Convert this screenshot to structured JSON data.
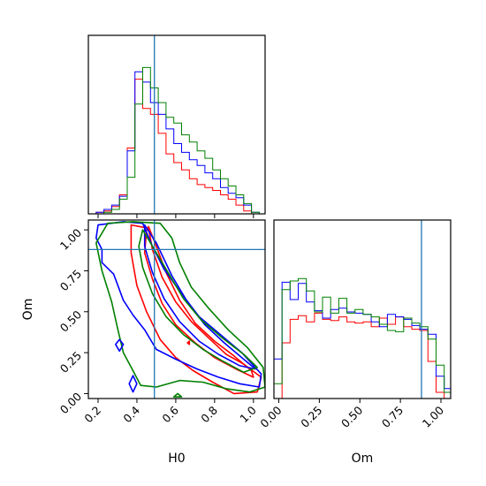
{
  "chart_data": {
    "type": "corner",
    "parameters": [
      "H0",
      "Om"
    ],
    "xlabel_bottom_left": "H0",
    "xlabel_bottom_right": "Om",
    "ylabel_left": "Om",
    "truth": {
      "H0": 0.49,
      "Om": 0.88
    },
    "ranges": {
      "H0": [
        0.15,
        1.06
      ],
      "Om": [
        -0.03,
        1.06
      ]
    },
    "ticks": {
      "H0": [
        "0.2",
        "0.4",
        "0.6",
        "0.8",
        "1.0"
      ],
      "Om": [
        "0.00",
        "0.25",
        "0.50",
        "0.75",
        "1.00"
      ]
    },
    "colors": {
      "series_1": "#ff0000",
      "series_2": "#0000ff",
      "series_3": "#008000",
      "truth": "#1f77b4"
    },
    "h0_hist_bins": [
      0.15,
      0.19,
      0.23,
      0.27,
      0.31,
      0.35,
      0.39,
      0.43,
      0.47,
      0.51,
      0.55,
      0.59,
      0.63,
      0.67,
      0.71,
      0.75,
      0.79,
      0.83,
      0.87,
      0.91,
      0.95,
      0.99,
      1.03
    ],
    "h0_hist": [
      {
        "color": "red",
        "values": [
          0,
          0.01,
          0.02,
          0.05,
          0.13,
          0.45,
          0.92,
          0.72,
          0.68,
          0.55,
          0.41,
          0.35,
          0.3,
          0.24,
          0.2,
          0.18,
          0.16,
          0.13,
          0.1,
          0.06,
          0.02,
          0
        ]
      },
      {
        "color": "blue",
        "values": [
          0,
          0.01,
          0.03,
          0.06,
          0.12,
          0.43,
          0.97,
          0.9,
          0.76,
          0.68,
          0.58,
          0.48,
          0.42,
          0.37,
          0.33,
          0.28,
          0.24,
          0.18,
          0.14,
          0.11,
          0.06,
          0.01
        ]
      },
      {
        "color": "green",
        "values": [
          0,
          0,
          0.01,
          0.03,
          0.1,
          0.25,
          0.75,
          1.0,
          0.86,
          0.76,
          0.66,
          0.62,
          0.54,
          0.49,
          0.43,
          0.38,
          0.3,
          0.24,
          0.19,
          0.13,
          0.07,
          0.01
        ]
      }
    ],
    "om_hist_bins": [
      -0.03,
      0.02,
      0.07,
      0.12,
      0.17,
      0.22,
      0.27,
      0.32,
      0.37,
      0.42,
      0.47,
      0.52,
      0.57,
      0.62,
      0.67,
      0.72,
      0.77,
      0.82,
      0.87,
      0.92,
      0.97,
      1.02,
      1.06
    ],
    "om_hist": [
      {
        "color": "red",
        "values": [
          0,
          0.45,
          0.64,
          0.67,
          0.62,
          0.69,
          0.64,
          0.63,
          0.66,
          0.62,
          0.61,
          0.62,
          0.58,
          0.65,
          0.6,
          0.66,
          0.58,
          0.56,
          0.55,
          0.3,
          0.05,
          0
        ]
      },
      {
        "color": "blue",
        "values": [
          0.32,
          0.94,
          0.8,
          0.93,
          0.78,
          0.71,
          0.65,
          0.72,
          0.73,
          0.7,
          0.69,
          0.68,
          0.62,
          0.58,
          0.68,
          0.66,
          0.64,
          0.59,
          0.56,
          0.52,
          0.18,
          0.08
        ]
      },
      {
        "color": "green",
        "values": [
          0.12,
          0.88,
          0.95,
          0.97,
          0.87,
          0.7,
          0.82,
          0.69,
          0.81,
          0.69,
          0.72,
          0.68,
          0.66,
          0.6,
          0.55,
          0.54,
          0.65,
          0.61,
          0.58,
          0.48,
          0.27,
          0.05
        ]
      }
    ],
    "contours": [
      {
        "color": "red",
        "level": "inner",
        "points": [
          [
            0.46,
            1.02
          ],
          [
            0.5,
            0.9
          ],
          [
            0.55,
            0.74
          ],
          [
            0.62,
            0.57
          ],
          [
            0.7,
            0.43
          ],
          [
            0.8,
            0.32
          ],
          [
            0.9,
            0.23
          ],
          [
            0.99,
            0.14
          ],
          [
            1.0,
            0.1
          ],
          [
            0.91,
            0.15
          ],
          [
            0.8,
            0.22
          ],
          [
            0.7,
            0.31
          ],
          [
            0.6,
            0.42
          ],
          [
            0.53,
            0.55
          ],
          [
            0.48,
            0.7
          ],
          [
            0.44,
            0.86
          ],
          [
            0.45,
            1.0
          ]
        ]
      },
      {
        "color": "red",
        "level": "outer",
        "points": [
          [
            0.37,
            1.03
          ],
          [
            0.46,
            1.01
          ],
          [
            0.48,
            0.88
          ],
          [
            0.53,
            0.71
          ],
          [
            0.6,
            0.56
          ],
          [
            0.68,
            0.44
          ],
          [
            0.76,
            0.35
          ],
          [
            0.86,
            0.24
          ],
          [
            0.95,
            0.18
          ],
          [
            1.04,
            0.1
          ],
          [
            1.02,
            0.01
          ],
          [
            0.9,
            0.0
          ],
          [
            0.79,
            0.07
          ],
          [
            0.69,
            0.14
          ],
          [
            0.6,
            0.22
          ],
          [
            0.52,
            0.33
          ],
          [
            0.45,
            0.5
          ],
          [
            0.4,
            0.66
          ],
          [
            0.37,
            0.86
          ]
        ]
      },
      {
        "color": "blue",
        "level": "inner",
        "points": [
          [
            0.44,
            1.03
          ],
          [
            0.5,
            0.92
          ],
          [
            0.58,
            0.72
          ],
          [
            0.66,
            0.56
          ],
          [
            0.75,
            0.42
          ],
          [
            0.85,
            0.31
          ],
          [
            0.96,
            0.2
          ],
          [
            1.01,
            0.15
          ],
          [
            0.93,
            0.17
          ],
          [
            0.82,
            0.24
          ],
          [
            0.72,
            0.32
          ],
          [
            0.62,
            0.44
          ],
          [
            0.54,
            0.58
          ],
          [
            0.48,
            0.74
          ],
          [
            0.44,
            0.9
          ]
        ]
      },
      {
        "color": "blue",
        "level": "outer",
        "points": [
          [
            0.2,
            1.03
          ],
          [
            0.33,
            1.05
          ],
          [
            0.43,
            1.04
          ],
          [
            0.48,
            0.9
          ],
          [
            0.54,
            0.76
          ],
          [
            0.63,
            0.61
          ],
          [
            0.72,
            0.47
          ],
          [
            0.83,
            0.36
          ],
          [
            0.94,
            0.25
          ],
          [
            1.04,
            0.12
          ],
          [
            1.03,
            0.04
          ],
          [
            0.93,
            0.06
          ],
          [
            0.82,
            0.1
          ],
          [
            0.71,
            0.15
          ],
          [
            0.6,
            0.21
          ],
          [
            0.5,
            0.27
          ],
          [
            0.44,
            0.39
          ],
          [
            0.38,
            0.48
          ],
          [
            0.33,
            0.57
          ],
          [
            0.28,
            0.73
          ],
          [
            0.22,
            0.8
          ],
          [
            0.22,
            0.88
          ],
          [
            0.19,
            0.95
          ]
        ]
      },
      {
        "color": "green",
        "level": "inner",
        "points": [
          [
            0.43,
            1.0
          ],
          [
            0.49,
            0.88
          ],
          [
            0.56,
            0.74
          ],
          [
            0.64,
            0.58
          ],
          [
            0.73,
            0.45
          ],
          [
            0.84,
            0.34
          ],
          [
            0.95,
            0.24
          ],
          [
            1.02,
            0.16
          ],
          [
            0.95,
            0.13
          ],
          [
            0.84,
            0.2
          ],
          [
            0.74,
            0.27
          ],
          [
            0.64,
            0.36
          ],
          [
            0.55,
            0.47
          ],
          [
            0.48,
            0.61
          ],
          [
            0.43,
            0.77
          ],
          [
            0.41,
            0.9
          ]
        ]
      },
      {
        "color": "green",
        "level": "outer",
        "points": [
          [
            0.25,
            1.04
          ],
          [
            0.38,
            1.05
          ],
          [
            0.52,
            1.04
          ],
          [
            0.58,
            0.95
          ],
          [
            0.62,
            0.8
          ],
          [
            0.68,
            0.65
          ],
          [
            0.77,
            0.52
          ],
          [
            0.87,
            0.39
          ],
          [
            0.97,
            0.28
          ],
          [
            1.05,
            0.16
          ],
          [
            1.06,
            0.04
          ],
          [
            0.98,
            0.01
          ],
          [
            0.86,
            0.03
          ],
          [
            0.74,
            0.07
          ],
          [
            0.62,
            0.08
          ],
          [
            0.5,
            0.04
          ],
          [
            0.42,
            0.05
          ],
          [
            0.38,
            0.14
          ],
          [
            0.33,
            0.25
          ],
          [
            0.3,
            0.4
          ],
          [
            0.27,
            0.56
          ],
          [
            0.22,
            0.75
          ],
          [
            0.19,
            0.92
          ]
        ]
      }
    ],
    "contour_islands": [
      {
        "color": "blue",
        "points": [
          [
            0.29,
            0.3
          ],
          [
            0.31,
            0.33
          ],
          [
            0.33,
            0.3
          ],
          [
            0.31,
            0.26
          ]
        ]
      },
      {
        "color": "blue",
        "points": [
          [
            0.36,
            0.06
          ],
          [
            0.38,
            0.11
          ],
          [
            0.4,
            0.06
          ],
          [
            0.38,
            0.01
          ]
        ]
      },
      {
        "color": "green",
        "points": [
          [
            0.59,
            -0.02
          ],
          [
            0.61,
            0.0
          ],
          [
            0.63,
            -0.02
          ]
        ]
      },
      {
        "color": "red",
        "points": [
          [
            0.66,
            0.31
          ],
          [
            0.67,
            0.32
          ],
          [
            0.67,
            0.3
          ]
        ]
      }
    ]
  }
}
